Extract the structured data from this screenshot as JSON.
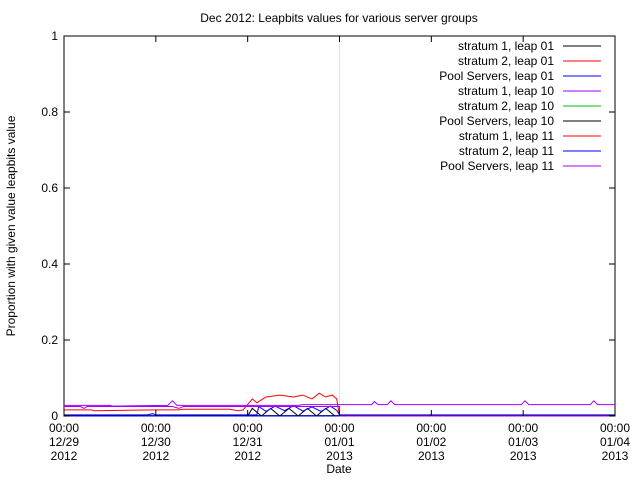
{
  "chart_data": {
    "type": "line",
    "title": "Dec 2012: Leapbits values for various server groups",
    "xlabel": "Date",
    "ylabel": "Proportion with given value leapbits value",
    "x_unit": "days",
    "xlim": [
      "2012-12-29 00:00",
      "2013-01-04 00:00"
    ],
    "ylim": [
      0,
      1
    ],
    "y_ticks": [
      0,
      0.2,
      0.4,
      0.6,
      0.8,
      1
    ],
    "y_tick_labels": [
      "0",
      "0.2",
      "0.4",
      "0.6",
      "0.8",
      "1"
    ],
    "x_ticks": [
      {
        "x": "2012-12-29 00:00",
        "label": [
          "00:00",
          "12/29",
          "2012"
        ]
      },
      {
        "x": "2012-12-30 00:00",
        "label": [
          "00:00",
          "12/30",
          "2012"
        ]
      },
      {
        "x": "2012-12-31 00:00",
        "label": [
          "00:00",
          "12/31",
          "2012"
        ]
      },
      {
        "x": "2013-01-01 00:00",
        "label": [
          "00:00",
          "01/01",
          "2013"
        ]
      },
      {
        "x": "2013-01-02 00:00",
        "label": [
          "00:00",
          "01/02",
          "2013"
        ]
      },
      {
        "x": "2013-01-03 00:00",
        "label": [
          "00:00",
          "01/03",
          "2013"
        ]
      },
      {
        "x": "2013-01-04 00:00",
        "label": [
          "00:00",
          "01/04",
          "2013"
        ]
      }
    ],
    "grid": false,
    "legend_position": "top-right",
    "marker": {
      "x": "2013-01-01 00:00",
      "color": "#ffff00"
    },
    "series": [
      {
        "name": "stratum 1, leap 01",
        "color": "#000000",
        "points": [
          [
            0,
            0.0
          ],
          [
            2.0,
            0.0
          ],
          [
            2.05,
            0.02
          ],
          [
            2.15,
            0.0
          ],
          [
            2.25,
            0.02
          ],
          [
            2.35,
            0.0
          ],
          [
            2.45,
            0.02
          ],
          [
            2.55,
            0.0
          ],
          [
            2.65,
            0.02
          ],
          [
            2.75,
            0.0
          ],
          [
            2.85,
            0.02
          ],
          [
            2.95,
            0.0
          ],
          [
            3.0,
            0.0
          ],
          [
            6,
            0.0
          ]
        ]
      },
      {
        "name": "stratum 2, leap 01",
        "color": "#ff0000",
        "points": [
          [
            0,
            0.016
          ],
          [
            0.3,
            0.016
          ],
          [
            0.33,
            0.014
          ],
          [
            1.0,
            0.016
          ],
          [
            1.25,
            0.016
          ],
          [
            1.3,
            0.018
          ],
          [
            1.8,
            0.018
          ],
          [
            1.9,
            0.014
          ],
          [
            1.95,
            0.016
          ],
          [
            2.05,
            0.045
          ],
          [
            2.1,
            0.035
          ],
          [
            2.2,
            0.05
          ],
          [
            2.35,
            0.055
          ],
          [
            2.5,
            0.05
          ],
          [
            2.6,
            0.055
          ],
          [
            2.7,
            0.045
          ],
          [
            2.78,
            0.06
          ],
          [
            2.85,
            0.05
          ],
          [
            2.92,
            0.055
          ],
          [
            2.97,
            0.045
          ],
          [
            3.0,
            0.0
          ],
          [
            6,
            0.0
          ]
        ]
      },
      {
        "name": "Pool Servers, leap 01",
        "color": "#0000ff",
        "points": [
          [
            0,
            0.003
          ],
          [
            0.9,
            0.003
          ],
          [
            0.97,
            0.006
          ],
          [
            1.0,
            0.003
          ],
          [
            2.1,
            0.003
          ],
          [
            2.12,
            0.025
          ],
          [
            2.2,
            0.012
          ],
          [
            2.3,
            0.026
          ],
          [
            2.4,
            0.014
          ],
          [
            2.5,
            0.027
          ],
          [
            2.6,
            0.013
          ],
          [
            2.7,
            0.024
          ],
          [
            2.8,
            0.012
          ],
          [
            2.9,
            0.026
          ],
          [
            2.97,
            0.015
          ],
          [
            3.0,
            0.003
          ],
          [
            6,
            0.003
          ]
        ]
      },
      {
        "name": "stratum 1, leap 10",
        "color": "#a000ff",
        "points": [
          [
            0,
            0.028
          ],
          [
            0.5,
            0.028
          ],
          [
            0.53,
            0.026
          ],
          [
            1.13,
            0.028
          ],
          [
            1.18,
            0.04
          ],
          [
            1.23,
            0.028
          ],
          [
            2.55,
            0.028
          ],
          [
            2.6,
            0.03
          ],
          [
            3.35,
            0.03
          ],
          [
            3.38,
            0.038
          ],
          [
            3.42,
            0.03
          ],
          [
            3.52,
            0.03
          ],
          [
            3.56,
            0.04
          ],
          [
            3.6,
            0.03
          ],
          [
            4.98,
            0.03
          ],
          [
            5.02,
            0.04
          ],
          [
            5.06,
            0.03
          ],
          [
            5.73,
            0.03
          ],
          [
            5.77,
            0.04
          ],
          [
            5.81,
            0.03
          ],
          [
            6,
            0.03
          ]
        ]
      },
      {
        "name": "stratum 2, leap 10",
        "color": "#00c000",
        "points": [
          [
            0,
            0.0
          ],
          [
            6,
            0.0
          ]
        ]
      },
      {
        "name": "Pool Servers, leap 10",
        "color": "#000000",
        "points": [
          [
            0,
            0.001
          ],
          [
            6,
            0.001
          ]
        ]
      },
      {
        "name": "stratum 1, leap 11",
        "color": "#ff0000",
        "points": [
          [
            0,
            0.0
          ],
          [
            6,
            0.0
          ]
        ]
      },
      {
        "name": "stratum 2, leap 11",
        "color": "#0000ff",
        "points": [
          [
            0,
            0.0
          ],
          [
            6,
            0.0
          ]
        ]
      },
      {
        "name": "Pool Servers, leap 11",
        "color": "#a000ff",
        "points": [
          [
            0,
            0.025
          ],
          [
            0.18,
            0.025
          ],
          [
            0.22,
            0.02
          ],
          [
            0.25,
            0.025
          ],
          [
            1.05,
            0.025
          ],
          [
            1.18,
            0.025
          ],
          [
            1.25,
            0.02
          ],
          [
            1.3,
            0.025
          ],
          [
            3.0,
            0.025
          ],
          [
            3.0,
            0.0
          ],
          [
            6,
            0.0
          ]
        ]
      }
    ]
  }
}
